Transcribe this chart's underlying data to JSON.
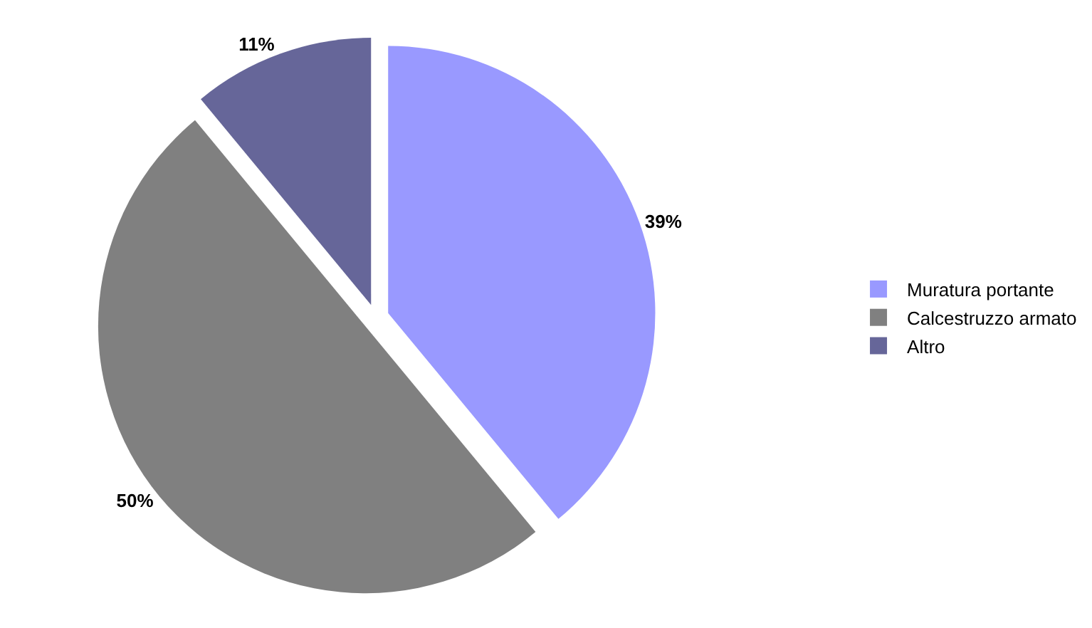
{
  "chart_data": {
    "type": "pie",
    "categories": [
      "Muratura portante",
      "Calcestruzzo armato",
      "Altro"
    ],
    "values": [
      39,
      50,
      11
    ],
    "colors": [
      "#9999ff",
      "#808080",
      "#666699"
    ],
    "value_labels": [
      "39%",
      "50%",
      "11%"
    ],
    "legend": "right"
  }
}
